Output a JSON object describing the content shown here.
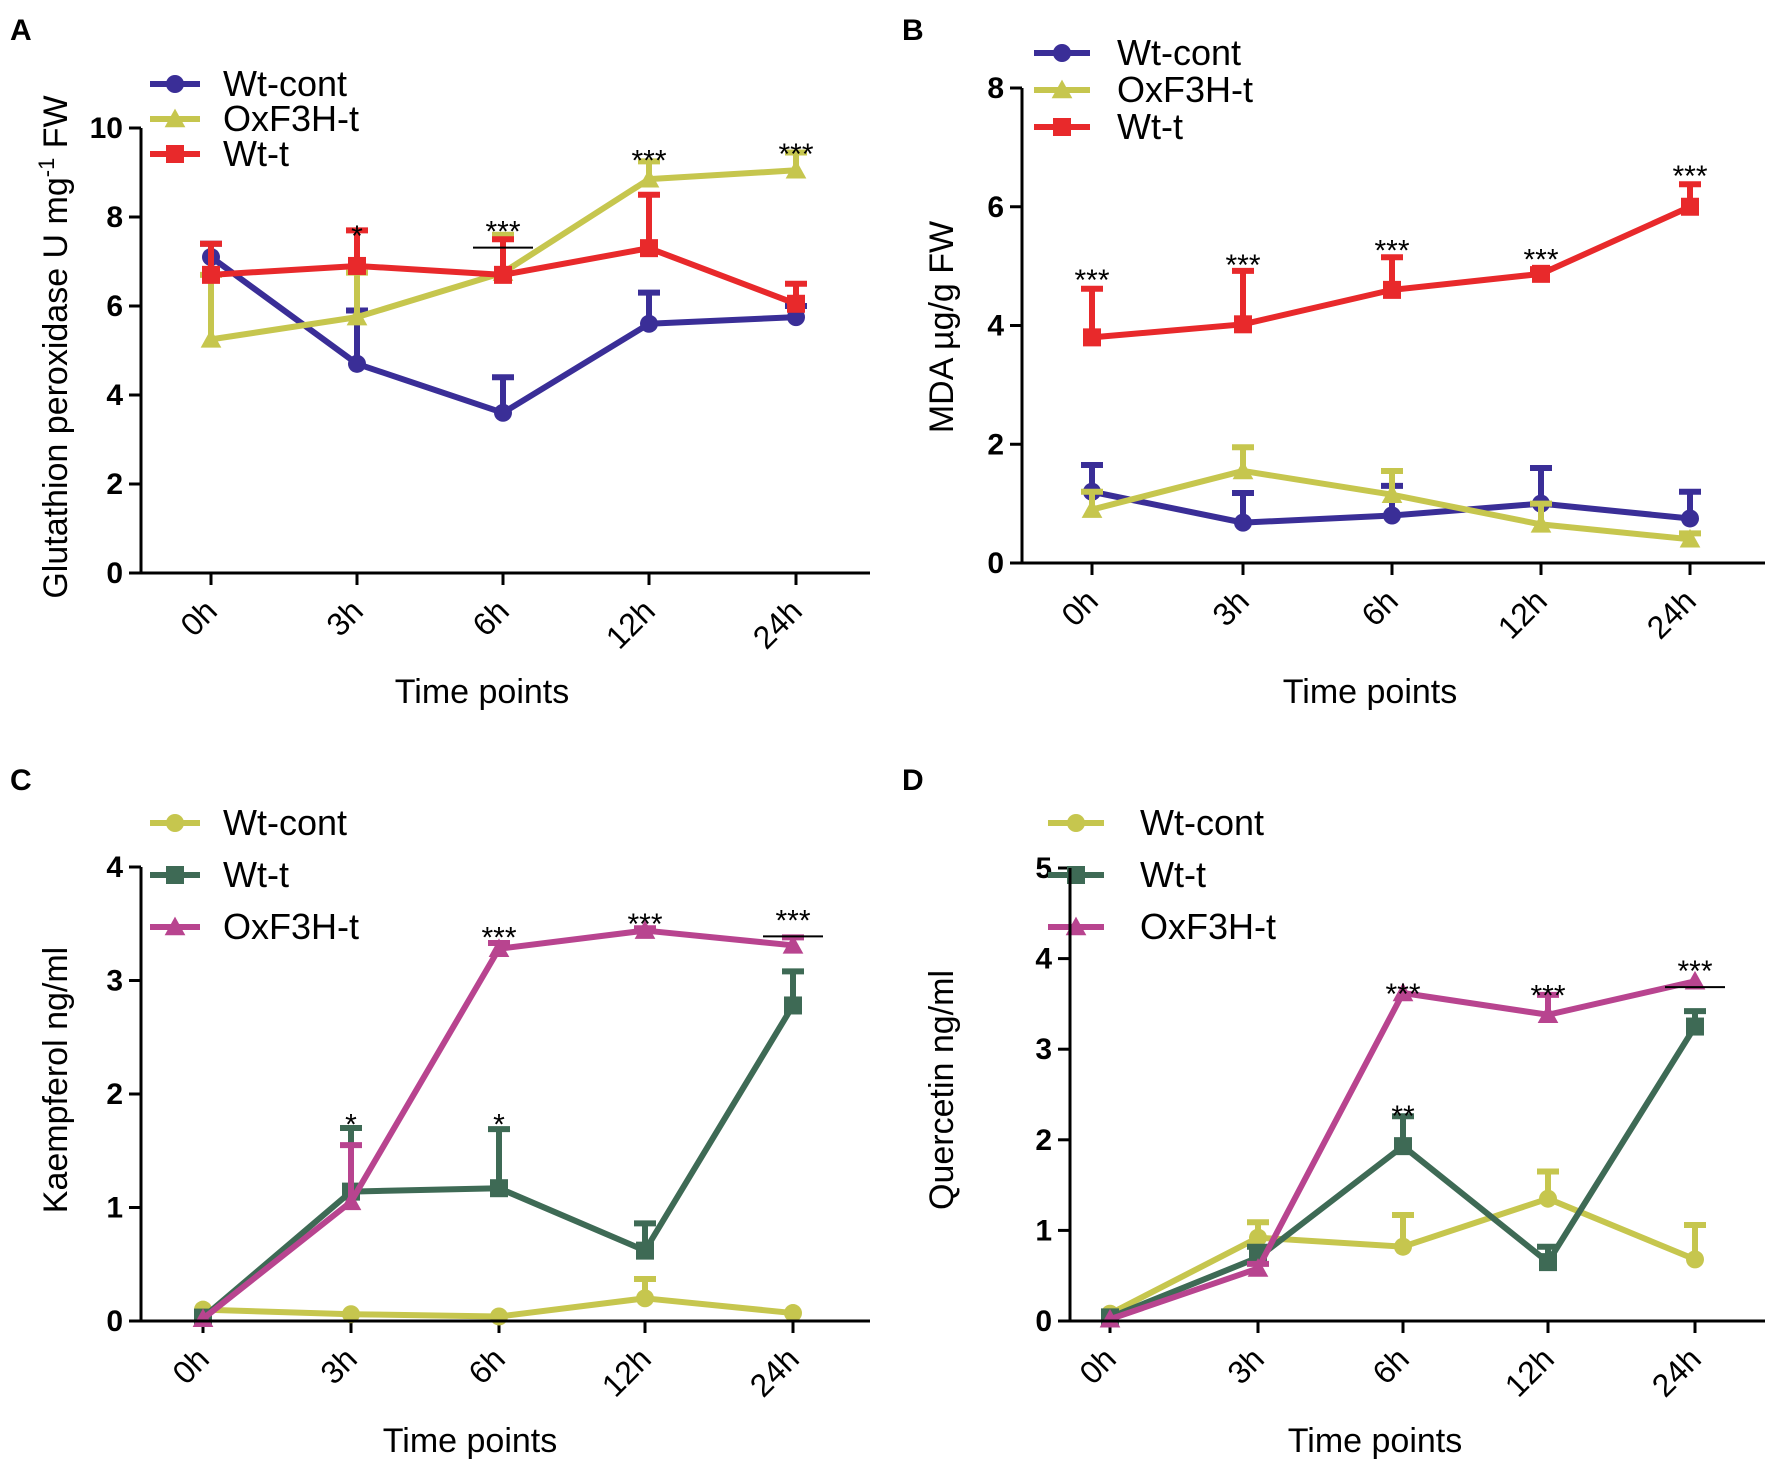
{
  "chart_data": [
    {
      "panel": "A",
      "type": "line",
      "categories": [
        "0h",
        "3h",
        "6h",
        "12h",
        "24h"
      ],
      "xlabel": "Time points",
      "ylabel": "Glutathion peroxidase U mg",
      "ylabel_sup": "-1",
      "ylabel_suffix": " FW",
      "ylim": [
        0,
        10
      ],
      "yticks": [
        0,
        2,
        4,
        6,
        8,
        10
      ],
      "ytick_labels": [
        "0",
        "2",
        "4",
        "6",
        "8",
        "10"
      ],
      "legend_position": "top-left",
      "series": [
        {
          "name": "Wt-cont",
          "color": "#3a2e97",
          "marker": "circle",
          "values": [
            7.1,
            4.7,
            3.6,
            5.6,
            5.75
          ],
          "errors": [
            0.3,
            1.2,
            0.8,
            0.7,
            0.25
          ]
        },
        {
          "name": "OxF3H-t",
          "color": "#c6c64e",
          "marker": "triangle",
          "values": [
            5.25,
            5.75,
            6.75,
            8.85,
            9.05
          ],
          "errors": [
            1.45,
            1.0,
            0.85,
            0.4,
            0.4
          ]
        },
        {
          "name": "Wt-t",
          "color": "#e8292b",
          "marker": "square",
          "values": [
            6.7,
            6.9,
            6.7,
            7.3,
            6.05
          ],
          "errors": [
            0.7,
            0.8,
            0.8,
            1.2,
            0.45
          ]
        }
      ],
      "annotations": [
        {
          "index": 1,
          "text": "*",
          "y": 7.75,
          "bar": false
        },
        {
          "index": 2,
          "text": "***",
          "y": 7.85,
          "bar": true
        },
        {
          "index": 3,
          "text": "***",
          "y": 9.45,
          "bar": false
        },
        {
          "index": 4,
          "text": "***",
          "y": 9.6,
          "bar": false
        }
      ]
    },
    {
      "panel": "B",
      "type": "line",
      "categories": [
        "0h",
        "3h",
        "6h",
        "12h",
        "24h"
      ],
      "xlabel": "Time points",
      "ylabel": "MDA µg/g FW",
      "ylim": [
        0,
        8
      ],
      "yticks": [
        0,
        2,
        4,
        6,
        8
      ],
      "ytick_labels": [
        "0",
        "2",
        "4",
        "6",
        "8"
      ],
      "legend_position": "top-left",
      "series": [
        {
          "name": "Wt-cont",
          "color": "#3a2e97",
          "marker": "circle",
          "values": [
            1.2,
            0.68,
            0.8,
            1.0,
            0.75
          ],
          "errors": [
            0.45,
            0.5,
            0.5,
            0.6,
            0.45
          ]
        },
        {
          "name": "OxF3H-t",
          "color": "#c6c64e",
          "marker": "triangle",
          "values": [
            0.9,
            1.55,
            1.15,
            0.65,
            0.4
          ],
          "errors": [
            0.3,
            0.4,
            0.4,
            0.35,
            0.1
          ]
        },
        {
          "name": "Wt-t",
          "color": "#e8292b",
          "marker": "square",
          "values": [
            3.8,
            4.02,
            4.6,
            4.87,
            6.0
          ],
          "errors": [
            0.82,
            0.9,
            0.55,
            0.08,
            0.38
          ]
        }
      ],
      "annotations": [
        {
          "index": 0,
          "text": "***",
          "y": 4.9,
          "bar": false
        },
        {
          "index": 1,
          "text": "***",
          "y": 5.15,
          "bar": false
        },
        {
          "index": 2,
          "text": "***",
          "y": 5.4,
          "bar": false
        },
        {
          "index": 3,
          "text": "***",
          "y": 5.25,
          "bar": false
        },
        {
          "index": 4,
          "text": "***",
          "y": 6.65,
          "bar": false
        }
      ]
    },
    {
      "panel": "C",
      "type": "line",
      "categories": [
        "0h",
        "3h",
        "6h",
        "12h",
        "24h"
      ],
      "xlabel": "Time points",
      "ylabel": "Kaempferol ng/ml",
      "ylim": [
        0,
        4
      ],
      "yticks": [
        0,
        1,
        2,
        3,
        4
      ],
      "ytick_labels": [
        "0",
        "1",
        "2",
        "3",
        "4"
      ],
      "legend_position": "top-left",
      "series": [
        {
          "name": "Wt-cont",
          "color": "#c6c64e",
          "marker": "circle",
          "values": [
            0.1,
            0.06,
            0.04,
            0.2,
            0.07
          ],
          "errors": [
            0.0,
            0.0,
            0.0,
            0.17,
            0.0
          ]
        },
        {
          "name": "Wt-t",
          "color": "#3e6a55",
          "marker": "square",
          "values": [
            0.03,
            1.14,
            1.17,
            0.62,
            2.78
          ],
          "errors": [
            0.0,
            0.56,
            0.52,
            0.24,
            0.3
          ]
        },
        {
          "name": "OxF3H-t",
          "color": "#b8448f",
          "marker": "triangle",
          "values": [
            0.02,
            1.05,
            3.28,
            3.44,
            3.31
          ],
          "errors": [
            0.0,
            0.5,
            0.05,
            0.02,
            0.07
          ]
        }
      ],
      "annotations": [
        {
          "index": 1,
          "text": "*",
          "y": 1.8,
          "bar": false
        },
        {
          "index": 2,
          "text": "*",
          "y": 1.8,
          "bar": false
        },
        {
          "index": 2,
          "text": "***",
          "y": 3.45,
          "bar": false
        },
        {
          "index": 3,
          "text": "***",
          "y": 3.57,
          "bar": false
        },
        {
          "index": 4,
          "text": "***",
          "y": 3.6,
          "bar": true
        }
      ]
    },
    {
      "panel": "D",
      "type": "line",
      "categories": [
        "0h",
        "3h",
        "6h",
        "12h",
        "24h"
      ],
      "xlabel": "Time points",
      "ylabel": "Quercetin ng/ml",
      "ylim": [
        0,
        5
      ],
      "yticks": [
        0,
        1,
        2,
        3,
        4,
        5
      ],
      "ytick_labels": [
        "0",
        "1",
        "2",
        "3",
        "4",
        "5"
      ],
      "legend_position": "top-left",
      "series": [
        {
          "name": "Wt-cont",
          "color": "#c6c64e",
          "marker": "circle",
          "values": [
            0.08,
            0.92,
            0.82,
            1.35,
            0.68
          ],
          "errors": [
            0.0,
            0.17,
            0.35,
            0.3,
            0.38
          ]
        },
        {
          "name": "Wt-t",
          "color": "#3e6a55",
          "marker": "square",
          "values": [
            0.04,
            0.7,
            1.93,
            0.65,
            3.25
          ],
          "errors": [
            0.0,
            0.12,
            0.33,
            0.17,
            0.17
          ]
        },
        {
          "name": "OxF3H-t",
          "color": "#b8448f",
          "marker": "triangle",
          "values": [
            0.02,
            0.58,
            3.62,
            3.38,
            3.75
          ],
          "errors": [
            0.0,
            0.05,
            0.0,
            0.22,
            0.0
          ]
        }
      ],
      "annotations": [
        {
          "index": 2,
          "text": "**",
          "y": 2.35,
          "bar": false
        },
        {
          "index": 2,
          "text": "***",
          "y": 3.7,
          "bar": false
        },
        {
          "index": 3,
          "text": "***",
          "y": 3.68,
          "bar": false
        },
        {
          "index": 4,
          "text": "***",
          "y": 3.95,
          "bar": true
        }
      ]
    }
  ]
}
